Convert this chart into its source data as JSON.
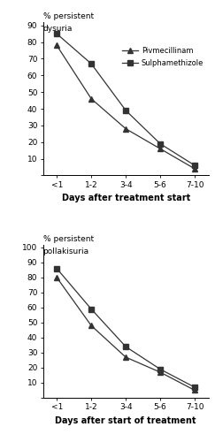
{
  "x_labels": [
    "<1",
    "1-2",
    "3-4",
    "5-6",
    "7-10"
  ],
  "top": {
    "ylabel_line1": "% persistent",
    "ylabel_line2": "dysuria",
    "xlabel": "Days after treatment start",
    "pivmecillinam": [
      78,
      46,
      28,
      16,
      4
    ],
    "sulphamethizole": [
      85,
      67,
      39,
      19,
      6
    ],
    "ylim": [
      0,
      92
    ],
    "yticks": [
      0,
      10,
      20,
      30,
      40,
      50,
      60,
      70,
      80,
      90
    ]
  },
  "bottom": {
    "ylabel_line1": "% persistent",
    "ylabel_line2": "pollakisuria",
    "xlabel": "Days after start of treatment",
    "pivmecillinam": [
      80,
      48,
      27,
      17,
      5
    ],
    "sulphamethizole": [
      86,
      59,
      34,
      19,
      7
    ],
    "ylim": [
      0,
      102
    ],
    "yticks": [
      0,
      10,
      20,
      30,
      40,
      50,
      60,
      70,
      80,
      90,
      100
    ]
  },
  "line_color": "#333333",
  "marker_triangle": "^",
  "marker_square": "s",
  "marker_size": 4,
  "legend_pivmecillinam": "Pivmecillinam",
  "legend_sulphamethizole": "Sulphamethizole",
  "font_size": 6.5,
  "xlabel_fontsize": 7,
  "label_fontsize": 6.5,
  "bg_color": "#ffffff"
}
